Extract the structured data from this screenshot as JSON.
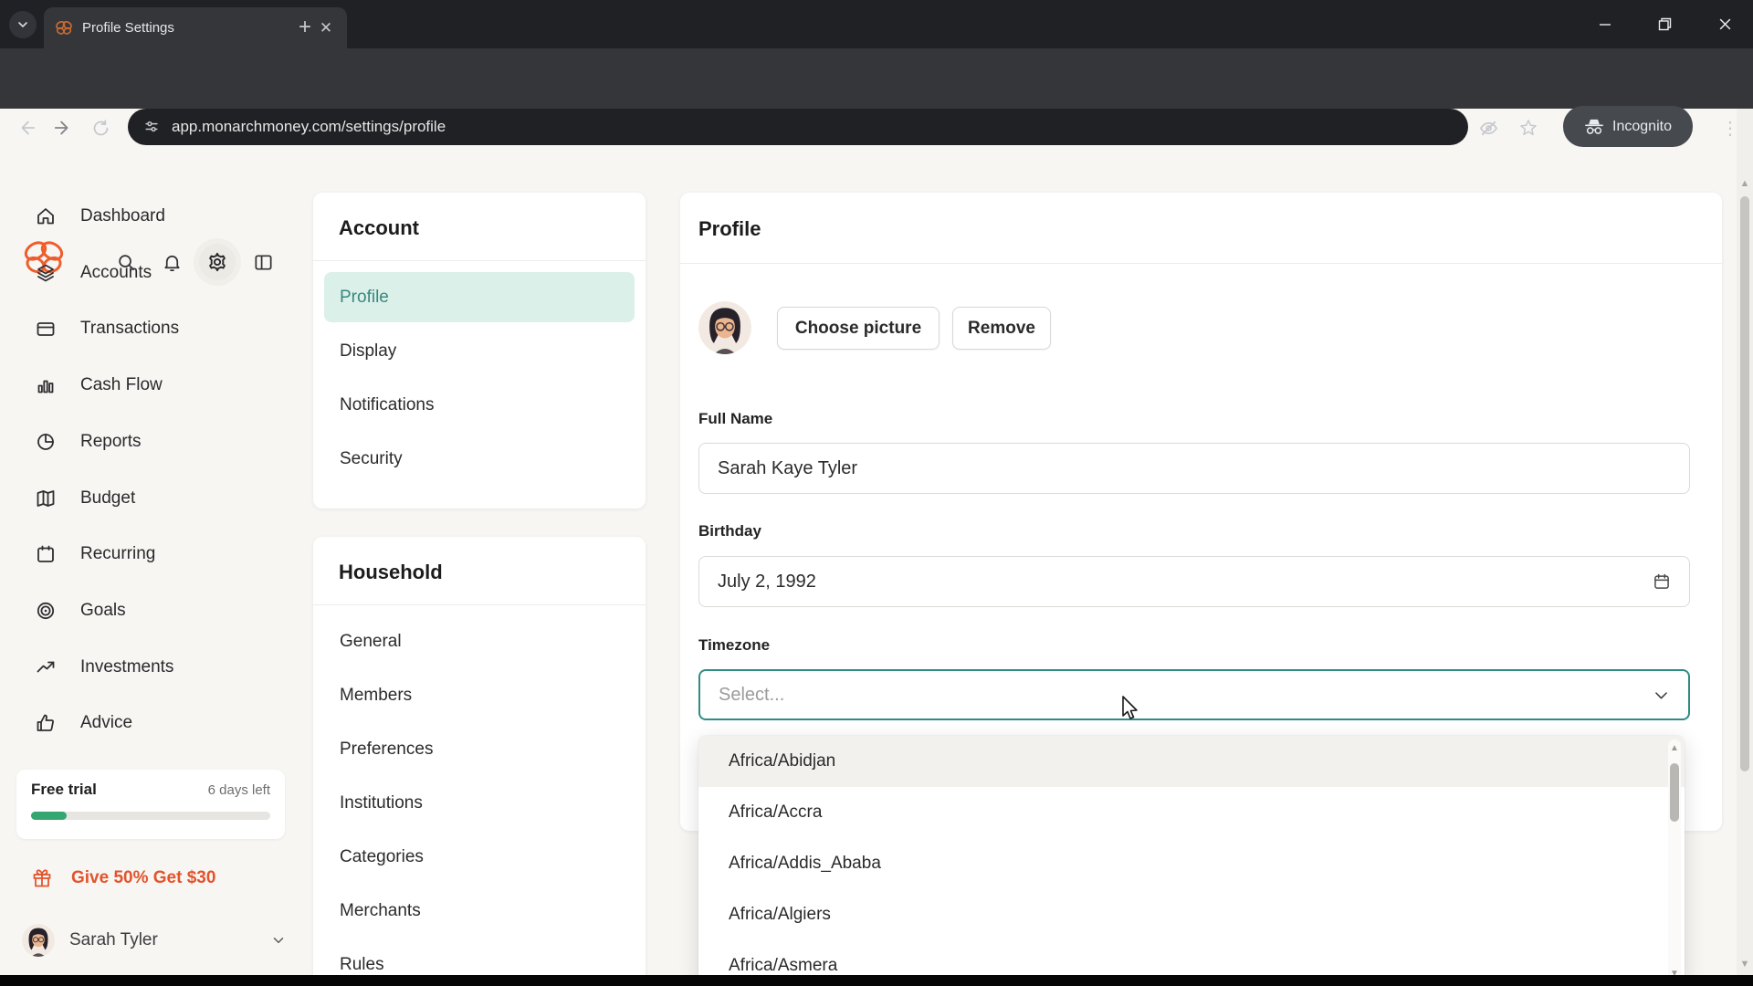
{
  "browser": {
    "tab_title": "Profile Settings",
    "url": "app.monarchmoney.com/settings/profile",
    "incognito_label": "Incognito"
  },
  "app_header": {
    "title": "Settings"
  },
  "sidebar": {
    "items": [
      {
        "label": "Dashboard",
        "icon": "home"
      },
      {
        "label": "Accounts",
        "icon": "layers"
      },
      {
        "label": "Transactions",
        "icon": "credit-card"
      },
      {
        "label": "Cash Flow",
        "icon": "bar-chart"
      },
      {
        "label": "Reports",
        "icon": "pie-chart"
      },
      {
        "label": "Budget",
        "icon": "map"
      },
      {
        "label": "Recurring",
        "icon": "calendar"
      },
      {
        "label": "Goals",
        "icon": "target"
      },
      {
        "label": "Investments",
        "icon": "trending-up"
      },
      {
        "label": "Advice",
        "icon": "thumbs-up"
      }
    ],
    "trial": {
      "label": "Free trial",
      "remaining": "6 days left",
      "progress_pct": 15
    },
    "referral_label": "Give 50% Get $30",
    "user_name": "Sarah Tyler"
  },
  "settings_nav": {
    "account": {
      "title": "Account",
      "items": [
        "Profile",
        "Display",
        "Notifications",
        "Security"
      ],
      "selected": "Profile"
    },
    "household": {
      "title": "Household",
      "items": [
        "General",
        "Members",
        "Preferences",
        "Institutions",
        "Categories",
        "Merchants",
        "Rules"
      ]
    }
  },
  "profile": {
    "title": "Profile",
    "choose_picture_label": "Choose picture",
    "remove_label": "Remove",
    "full_name_label": "Full Name",
    "full_name_value": "Sarah Kaye Tyler",
    "birthday_label": "Birthday",
    "birthday_value": "July 2, 1992",
    "timezone_label": "Timezone",
    "timezone_placeholder": "Select...",
    "timezone_options": [
      "Africa/Abidjan",
      "Africa/Accra",
      "Africa/Addis_Ababa",
      "Africa/Algiers",
      "Africa/Asmera"
    ],
    "highlighted_option": "Africa/Abidjan"
  },
  "colors": {
    "brand_orange": "#ee5d2b",
    "referral_orange": "#e2542c",
    "accent_teal": "#2f8c84",
    "selected_item_bg": "#dcf0ea",
    "progress_green": "#35a571"
  }
}
